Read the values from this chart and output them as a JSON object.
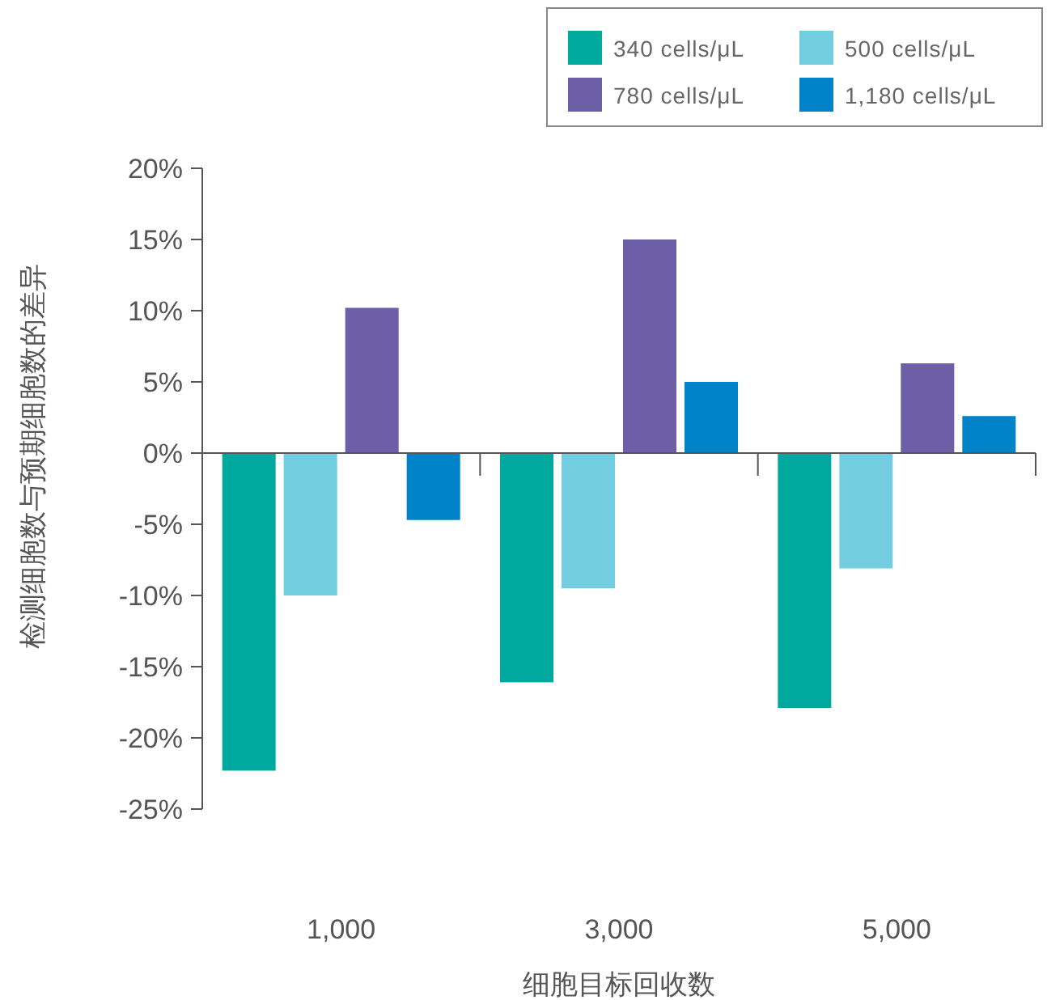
{
  "chart_data": {
    "type": "bar",
    "xlabel": "细胞目标回收数",
    "ylabel": "检测细胞数与预期细胞数的差异",
    "categories": [
      "1,000",
      "3,000",
      "5,000"
    ],
    "series": [
      {
        "name": "340 cells/μL",
        "color": "#00a99d",
        "values": [
          -22.3,
          -16.1,
          -17.9
        ]
      },
      {
        "name": "500 cells/μL",
        "color": "#73cde0",
        "values": [
          -10.0,
          -9.5,
          -8.1
        ]
      },
      {
        "name": "780 cells/μL",
        "color": "#6c5fa7",
        "values": [
          10.2,
          15.0,
          6.3
        ]
      },
      {
        "name": "1,180 cells/μL",
        "color": "#0082c8",
        "values": [
          -4.7,
          5.0,
          2.6
        ]
      }
    ],
    "ylim": [
      -25,
      20
    ],
    "yticks": [
      {
        "value": 20,
        "label": "20%"
      },
      {
        "value": 15,
        "label": "15%"
      },
      {
        "value": 10,
        "label": "10%"
      },
      {
        "value": 5,
        "label": "5%"
      },
      {
        "value": 0,
        "label": "0%"
      },
      {
        "value": -5,
        "label": "-5%"
      },
      {
        "value": -10,
        "label": "-10%"
      },
      {
        "value": -15,
        "label": "-15%"
      },
      {
        "value": -20,
        "label": "-20%"
      },
      {
        "value": -25,
        "label": "-25%"
      }
    ],
    "legend": "top right"
  }
}
